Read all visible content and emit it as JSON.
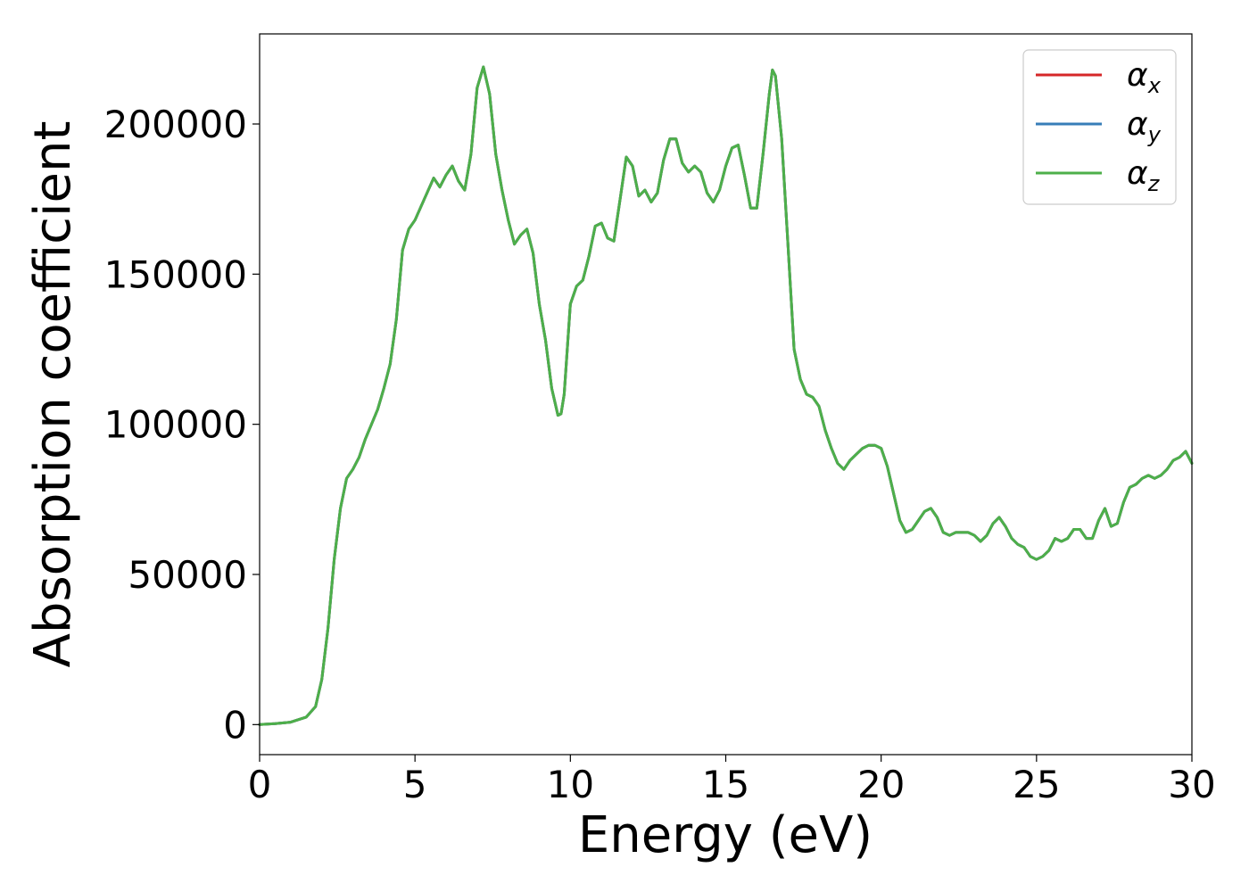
{
  "chart_data": {
    "type": "line",
    "title": "",
    "xlabel": "Energy (eV)",
    "ylabel": "Absorption coefficient",
    "xlim": [
      0,
      30
    ],
    "ylim": [
      -10000,
      230000
    ],
    "xticks": [
      0,
      5,
      10,
      15,
      20,
      25,
      30
    ],
    "xtick_labels": [
      "0",
      "5",
      "10",
      "15",
      "20",
      "25",
      "30"
    ],
    "yticks": [
      0,
      50000,
      100000,
      150000,
      200000
    ],
    "ytick_labels": [
      "0",
      "50000",
      "100000",
      "150000",
      "200000"
    ],
    "grid": false,
    "legend_position": "top-right",
    "x": [
      0,
      0.5,
      1.0,
      1.5,
      1.8,
      2.0,
      2.2,
      2.4,
      2.6,
      2.8,
      3.0,
      3.2,
      3.4,
      3.6,
      3.8,
      4.0,
      4.2,
      4.4,
      4.6,
      4.8,
      5.0,
      5.3,
      5.6,
      5.8,
      6.0,
      6.2,
      6.4,
      6.6,
      6.8,
      7.0,
      7.2,
      7.4,
      7.6,
      7.8,
      8.0,
      8.2,
      8.4,
      8.6,
      8.8,
      9.0,
      9.2,
      9.4,
      9.6,
      9.7,
      9.8,
      10.0,
      10.2,
      10.4,
      10.6,
      10.8,
      11.0,
      11.2,
      11.4,
      11.6,
      11.8,
      12.0,
      12.2,
      12.4,
      12.6,
      12.8,
      13.0,
      13.2,
      13.4,
      13.6,
      13.8,
      14.0,
      14.2,
      14.4,
      14.6,
      14.8,
      15.0,
      15.2,
      15.4,
      15.6,
      15.8,
      16.0,
      16.2,
      16.4,
      16.5,
      16.6,
      16.8,
      17.0,
      17.2,
      17.4,
      17.6,
      17.8,
      18.0,
      18.2,
      18.4,
      18.6,
      18.8,
      19.0,
      19.2,
      19.4,
      19.6,
      19.8,
      20.0,
      20.2,
      20.4,
      20.6,
      20.8,
      21.0,
      21.2,
      21.4,
      21.6,
      21.8,
      22.0,
      22.2,
      22.4,
      22.6,
      22.8,
      23.0,
      23.2,
      23.4,
      23.6,
      23.8,
      24.0,
      24.2,
      24.4,
      24.6,
      24.8,
      25.0,
      25.2,
      25.4,
      25.6,
      25.8,
      26.0,
      26.2,
      26.4,
      26.6,
      26.8,
      27.0,
      27.2,
      27.4,
      27.6,
      27.8,
      28.0,
      28.2,
      28.4,
      28.6,
      28.8,
      29.0,
      29.2,
      29.4,
      29.6,
      29.8,
      30.0
    ],
    "series": [
      {
        "name": "αx",
        "legend_symbol": "α",
        "legend_subscript": "x",
        "color": "#d62728",
        "values": [
          0,
          300,
          800,
          2500,
          6000,
          15000,
          32000,
          55000,
          72000,
          82000,
          85000,
          89000,
          95000,
          100000,
          105000,
          112000,
          120000,
          135000,
          158000,
          165000,
          168000,
          175000,
          182000,
          179000,
          183000,
          186000,
          181000,
          178000,
          190000,
          212000,
          219000,
          210000,
          190000,
          178000,
          168000,
          160000,
          163000,
          165000,
          157000,
          140000,
          128000,
          112000,
          103000,
          103500,
          110000,
          140000,
          146000,
          148000,
          156000,
          166000,
          167000,
          162000,
          161000,
          175000,
          189000,
          186000,
          176000,
          178000,
          174000,
          177000,
          188000,
          195000,
          195000,
          187000,
          184000,
          186000,
          184000,
          177000,
          174000,
          178000,
          186000,
          192000,
          193000,
          183000,
          172000,
          172000,
          190000,
          210000,
          218000,
          216000,
          195000,
          160000,
          125000,
          115000,
          110000,
          109000,
          106000,
          98000,
          92000,
          87000,
          85000,
          88000,
          90000,
          92000,
          93000,
          93000,
          92000,
          86000,
          77000,
          68000,
          64000,
          65000,
          68000,
          71000,
          72000,
          69000,
          64000,
          63000,
          64000,
          64000,
          64000,
          63000,
          61000,
          63000,
          67000,
          69000,
          66000,
          62000,
          60000,
          59000,
          56000,
          55000,
          56000,
          58000,
          62000,
          61000,
          62000,
          65000,
          65000,
          62000,
          62000,
          68000,
          72000,
          66000,
          67000,
          74000,
          79000,
          80000,
          82000,
          83000,
          82000,
          83000,
          85000,
          88000,
          89000,
          91000,
          87000
        ]
      },
      {
        "name": "αy",
        "legend_symbol": "α",
        "legend_subscript": "y",
        "color": "#377eb8",
        "values": [
          0,
          300,
          800,
          2500,
          6000,
          15000,
          32000,
          55000,
          72000,
          82000,
          85000,
          89000,
          95000,
          100000,
          105000,
          112000,
          120000,
          135000,
          158000,
          165000,
          168000,
          175000,
          182000,
          179000,
          183000,
          186000,
          181000,
          178000,
          190000,
          212000,
          219000,
          210000,
          190000,
          178000,
          168000,
          160000,
          163000,
          165000,
          157000,
          140000,
          128000,
          112000,
          103000,
          103500,
          110000,
          140000,
          146000,
          148000,
          156000,
          166000,
          167000,
          162000,
          161000,
          175000,
          189000,
          186000,
          176000,
          178000,
          174000,
          177000,
          188000,
          195000,
          195000,
          187000,
          184000,
          186000,
          184000,
          177000,
          174000,
          178000,
          186000,
          192000,
          193000,
          183000,
          172000,
          172000,
          190000,
          210000,
          218000,
          216000,
          195000,
          160000,
          125000,
          115000,
          110000,
          109000,
          106000,
          98000,
          92000,
          87000,
          85000,
          88000,
          90000,
          92000,
          93000,
          93000,
          92000,
          86000,
          77000,
          68000,
          64000,
          65000,
          68000,
          71000,
          72000,
          69000,
          64000,
          63000,
          64000,
          64000,
          64000,
          63000,
          61000,
          63000,
          67000,
          69000,
          66000,
          62000,
          60000,
          59000,
          56000,
          55000,
          56000,
          58000,
          62000,
          61000,
          62000,
          65000,
          65000,
          62000,
          62000,
          68000,
          72000,
          66000,
          67000,
          74000,
          79000,
          80000,
          82000,
          83000,
          82000,
          83000,
          85000,
          88000,
          89000,
          91000,
          87000
        ]
      },
      {
        "name": "αz",
        "legend_symbol": "α",
        "legend_subscript": "z",
        "color": "#4daf4a",
        "values": [
          0,
          300,
          800,
          2500,
          6000,
          15000,
          32000,
          55000,
          72000,
          82000,
          85000,
          89000,
          95000,
          100000,
          105000,
          112000,
          120000,
          135000,
          158000,
          165000,
          168000,
          175000,
          182000,
          179000,
          183000,
          186000,
          181000,
          178000,
          190000,
          212000,
          219000,
          210000,
          190000,
          178000,
          168000,
          160000,
          163000,
          165000,
          157000,
          140000,
          128000,
          112000,
          103000,
          103500,
          110000,
          140000,
          146000,
          148000,
          156000,
          166000,
          167000,
          162000,
          161000,
          175000,
          189000,
          186000,
          176000,
          178000,
          174000,
          177000,
          188000,
          195000,
          195000,
          187000,
          184000,
          186000,
          184000,
          177000,
          174000,
          178000,
          186000,
          192000,
          193000,
          183000,
          172000,
          172000,
          190000,
          210000,
          218000,
          216000,
          195000,
          160000,
          125000,
          115000,
          110000,
          109000,
          106000,
          98000,
          92000,
          87000,
          85000,
          88000,
          90000,
          92000,
          93000,
          93000,
          92000,
          86000,
          77000,
          68000,
          64000,
          65000,
          68000,
          71000,
          72000,
          69000,
          64000,
          63000,
          64000,
          64000,
          64000,
          63000,
          61000,
          63000,
          67000,
          69000,
          66000,
          62000,
          60000,
          59000,
          56000,
          55000,
          56000,
          58000,
          62000,
          61000,
          62000,
          65000,
          65000,
          62000,
          62000,
          68000,
          72000,
          66000,
          67000,
          74000,
          79000,
          80000,
          82000,
          83000,
          82000,
          83000,
          85000,
          88000,
          89000,
          91000,
          87000
        ]
      }
    ]
  }
}
